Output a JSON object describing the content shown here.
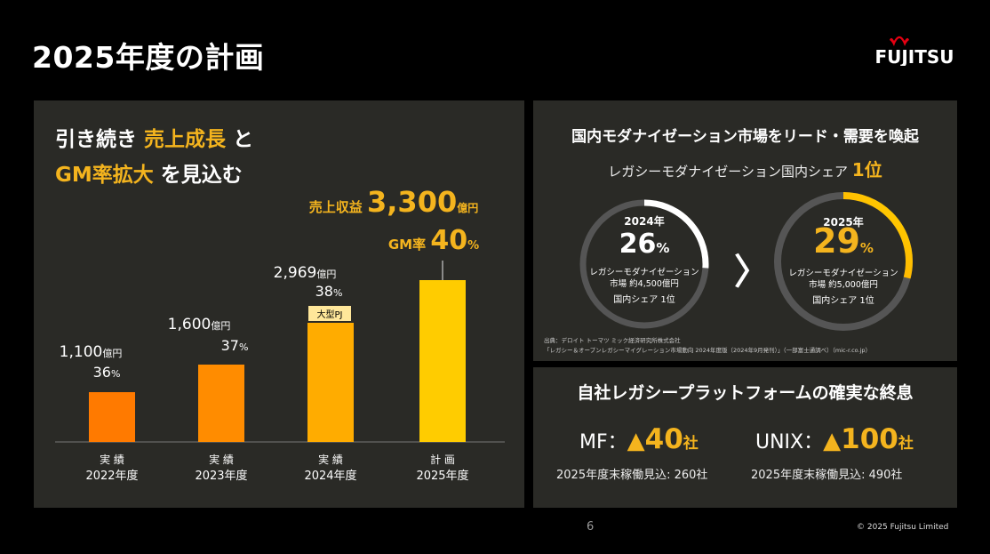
{
  "page": {
    "title": "2025年度の計画",
    "logo_text": "FUJITSU",
    "page_number": "6",
    "copyright": "© 2025 Fujitsu Limited"
  },
  "left": {
    "headline1_a": "引き続き",
    "headline1_b": "売上成長",
    "headline1_c": "と",
    "headline2_a": "GM率拡大",
    "headline2_b": "を見込む"
  },
  "chart_data": {
    "type": "bar",
    "categories": [
      "2022年度",
      "2023年度",
      "2024年度",
      "2025年度"
    ],
    "category_types": [
      "実 績",
      "実 績",
      "実 績",
      "計 画"
    ],
    "values": [
      1100,
      1600,
      2969,
      3300
    ],
    "value_labels": [
      "1,100",
      "1,600",
      "2,969",
      "3,300"
    ],
    "value_unit": "億円",
    "gm_rates": [
      "36",
      "37",
      "38",
      "40"
    ],
    "gm_unit": "%",
    "plan_revenue_label": "売上収益",
    "plan_gm_label": "GM率",
    "annotation": "大型PJ",
    "ylim": [
      0,
      3400
    ],
    "colors": [
      "#ff7a00",
      "#ff8c00",
      "#ffac00",
      "#ffcc00"
    ]
  },
  "right_top": {
    "title": "国内モダナイゼーション市場をリード・需要を喚起",
    "subtitle": "レガシーモダナイゼーション国内シェア",
    "rank": "1位",
    "rings": [
      {
        "year": "2024年",
        "pct": "26",
        "unit": "%",
        "desc1": "レガシーモダナイゼーション",
        "desc2": "市場 約4,500億円",
        "share": "国内シェア 1位",
        "fraction": 0.26
      },
      {
        "year": "2025年",
        "pct": "29",
        "unit": "%",
        "desc1": "レガシーモダナイゼーション",
        "desc2": "市場 約5,000億円",
        "share": "国内シェア 1位",
        "fraction": 0.29
      }
    ],
    "arrow": "〉",
    "source1": "出典：デロイト トーマツ ミック経済研究所株式会社",
    "source2": "「レガシー＆オープンレガシーマイグレーション市場動向 2024年度版（2024年9月発刊）」（一部富士通調べ）（mic-r.co.jp）"
  },
  "right_bottom": {
    "title": "自社レガシープラットフォームの確実な終息",
    "mf_label": "MF：",
    "mf_tri": "▲",
    "mf_num": "40",
    "mf_unit": "社",
    "mf_note": "2025年度末稼働見込: 260社",
    "unix_label": "UNIX：",
    "unix_tri": "▲",
    "unix_num": "100",
    "unix_unit": "社",
    "unix_note": "2025年度末稼働見込: 490社"
  }
}
